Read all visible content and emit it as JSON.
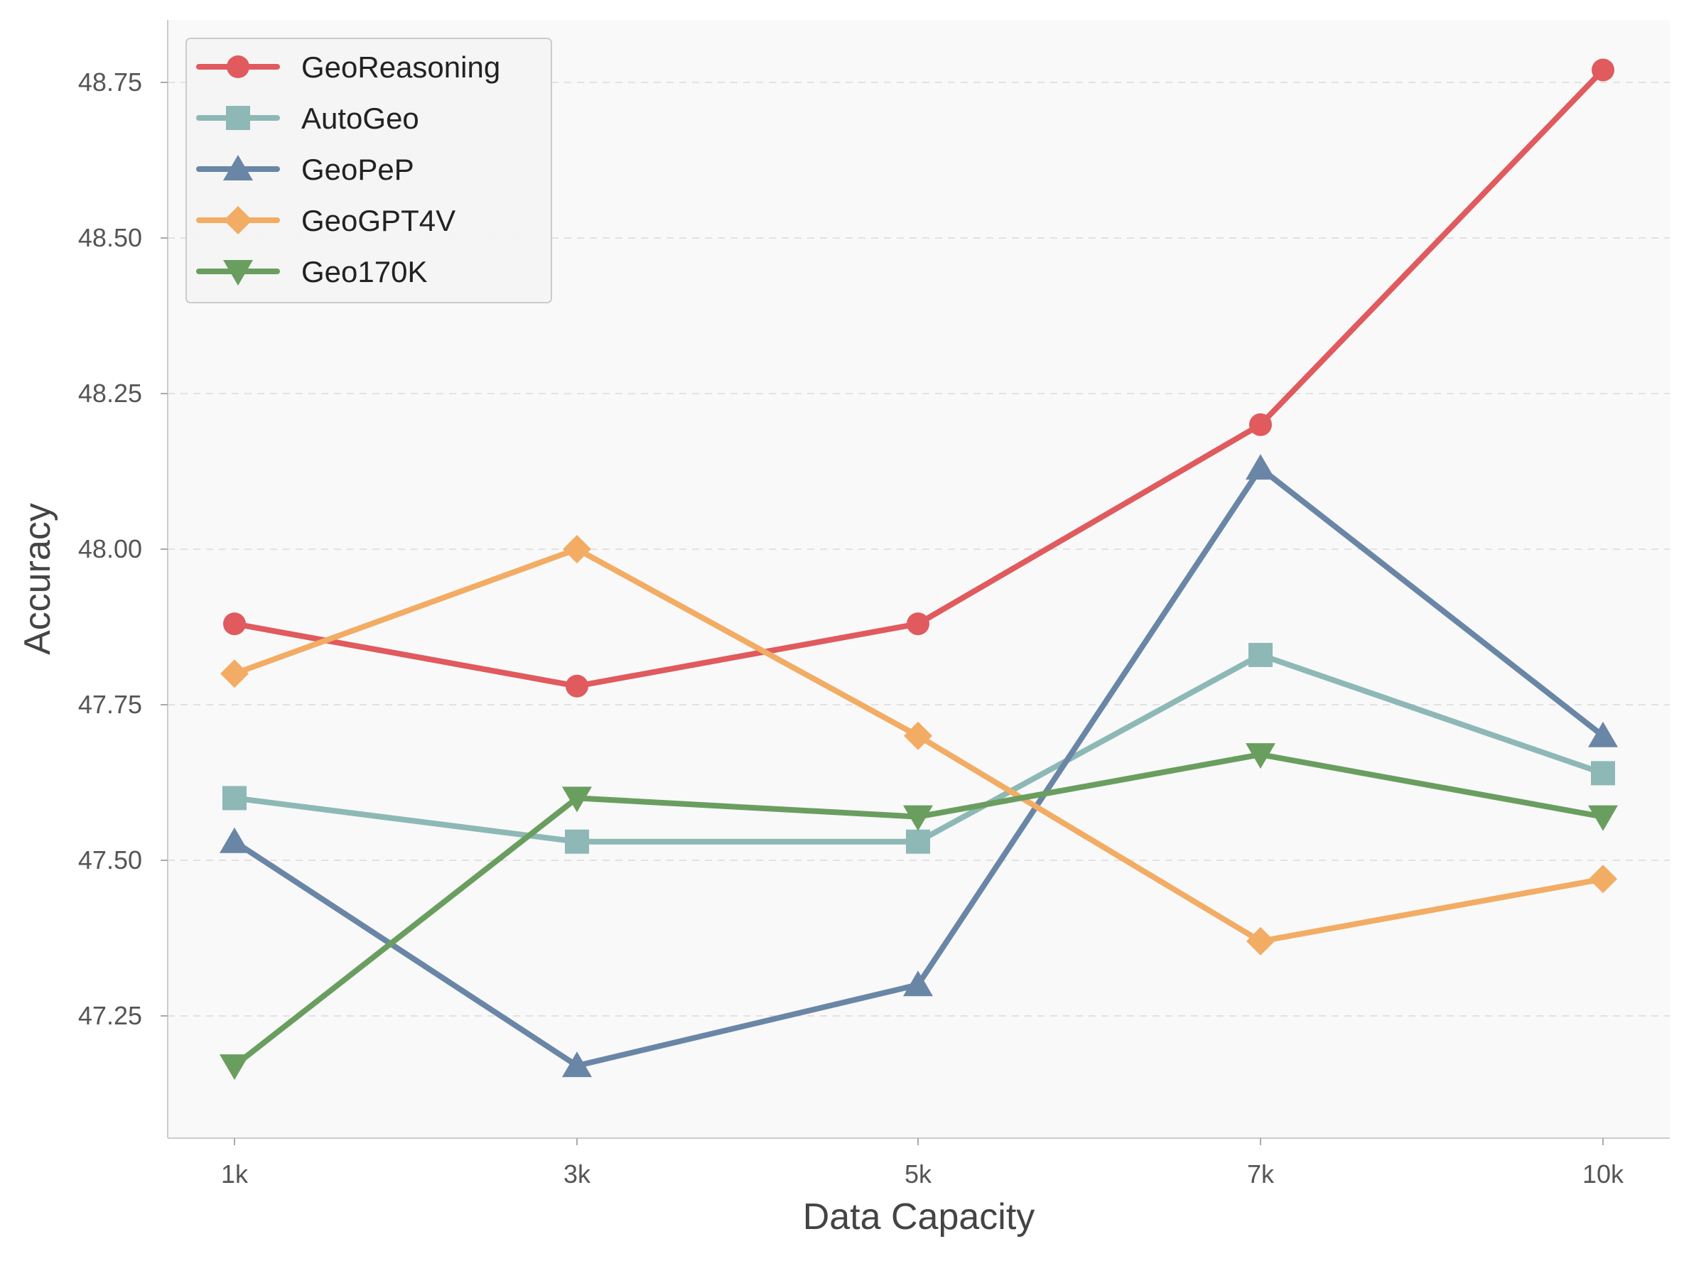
{
  "chart_data": {
    "type": "line",
    "title": "",
    "xlabel": "Data Capacity",
    "ylabel": "Accuracy",
    "categories": [
      "1k",
      "3k",
      "5k",
      "7k",
      "10k"
    ],
    "ylim": [
      47.05,
      48.85
    ],
    "yticks": [
      47.25,
      47.5,
      47.75,
      48.0,
      48.25,
      48.5,
      48.75
    ],
    "ytick_labels": [
      "47.25",
      "47.50",
      "47.75",
      "48.00",
      "48.25",
      "48.50",
      "48.75"
    ],
    "grid": "horizontal dashed",
    "legend_position": "top-left",
    "series": [
      {
        "name": "GeoReasoning",
        "color": "#E05A5E",
        "marker": "circle",
        "values": [
          47.88,
          47.78,
          47.88,
          48.2,
          48.77
        ]
      },
      {
        "name": "AutoGeo",
        "color": "#8DB8B6",
        "marker": "square",
        "values": [
          47.6,
          47.53,
          47.53,
          47.83,
          47.64
        ]
      },
      {
        "name": "GeoPeP",
        "color": "#6A86A6",
        "marker": "triangle-up",
        "values": [
          47.53,
          47.17,
          47.3,
          48.13,
          47.7
        ]
      },
      {
        "name": "GeoGPT4V",
        "color": "#F2AC64",
        "marker": "diamond",
        "values": [
          47.8,
          48.0,
          47.7,
          47.37,
          47.47
        ]
      },
      {
        "name": "Geo170K",
        "color": "#6A9E5F",
        "marker": "triangle-down",
        "values": [
          47.17,
          47.6,
          47.57,
          47.67,
          47.57
        ]
      }
    ]
  }
}
